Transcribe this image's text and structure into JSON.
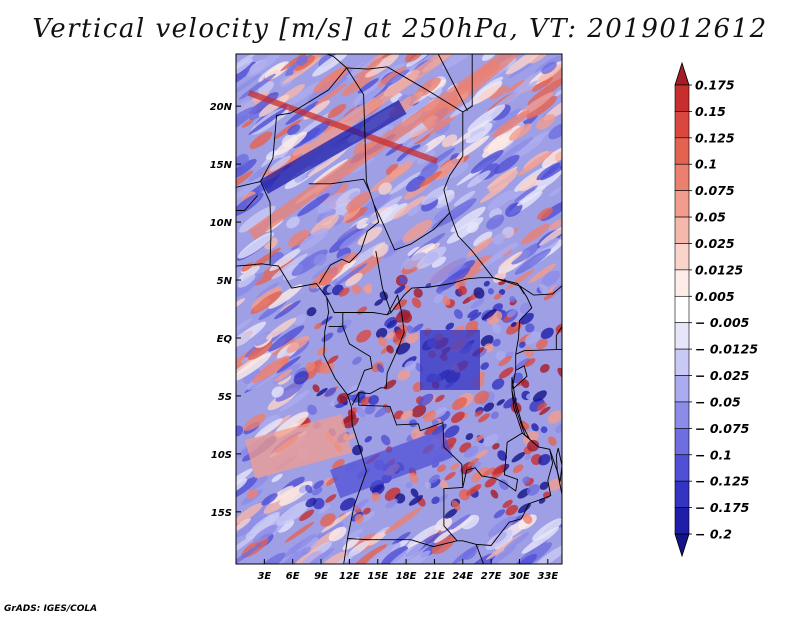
{
  "title": "Vertical velocity [m/s] at 250hPa, VT: 2019012612",
  "credit": "GrADS: IGES/COLA",
  "map": {
    "field": "vertical velocity",
    "level": "250hPa",
    "units": "m/s",
    "lat_labels": [
      "20N",
      "15N",
      "10N",
      "5N",
      "EQ",
      "5S",
      "10S",
      "15S"
    ],
    "lat_values": [
      20,
      15,
      10,
      5,
      0,
      -5,
      -10,
      -15
    ],
    "lon_labels": [
      "3E",
      "6E",
      "9E",
      "12E",
      "15E",
      "18E",
      "21E",
      "24E",
      "27E",
      "30E",
      "33E"
    ],
    "lon_values": [
      3,
      6,
      9,
      12,
      15,
      18,
      21,
      24,
      27,
      30,
      33
    ],
    "lon_range": [
      0,
      34.5
    ],
    "lat_range": [
      -19.5,
      24.5
    ]
  },
  "colorbar": {
    "labels": [
      "0.175",
      "0.15",
      "0.125",
      "0.1",
      "0.075",
      "0.05",
      "0.025",
      "0.0125",
      "0.005",
      "− 0.005",
      "− 0.0125",
      "− 0.025",
      "− 0.05",
      "− 0.075",
      "− 0.1",
      "− 0.125",
      "− 0.175",
      "− 0.2"
    ],
    "colors": [
      "#a51c24",
      "#c72e2e",
      "#d9473f",
      "#e46350",
      "#ec8070",
      "#f29c8e",
      "#f6b8ab",
      "#fad3ca",
      "#fdece8",
      "#ffffff",
      "#e6e6fa",
      "#c9c9f5",
      "#ababf0",
      "#8c8ce8",
      "#6e6ee0",
      "#5050d6",
      "#3434c2",
      "#1e1ea8",
      "#13138a"
    ]
  }
}
